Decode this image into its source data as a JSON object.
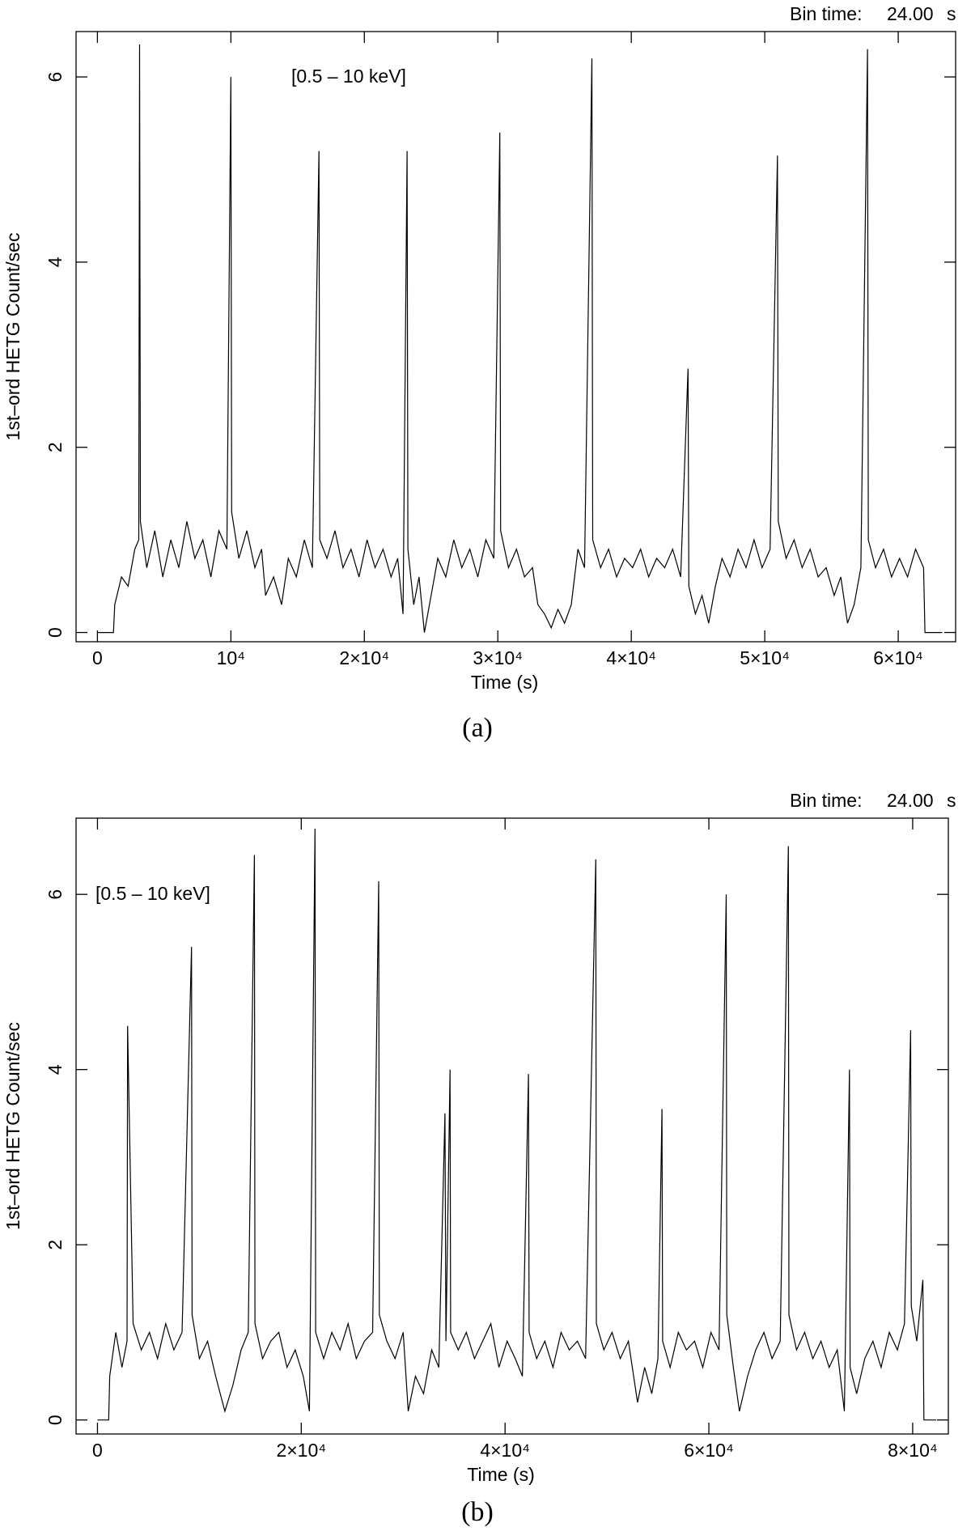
{
  "chart_data": [
    {
      "type": "line",
      "caption": "(a)",
      "annotation": "[0.5 – 10 keV]",
      "bin_time_label": "Bin time:",
      "bin_time_value": "24.00",
      "bin_time_unit": "s",
      "xlabel": "Time (s)",
      "ylabel": "1st–ord HETG Count/sec",
      "xlim": [
        -1600,
        64300
      ],
      "ylim": [
        -0.1,
        6.49
      ],
      "xticks": [
        0,
        {
          "value": 10000,
          "label": "10⁴"
        },
        {
          "value": 20000,
          "label": "2×10⁴"
        },
        {
          "value": 30000,
          "label": "3×10⁴"
        },
        {
          "value": 40000,
          "label": "4×10⁴"
        },
        {
          "value": 50000,
          "label": "5×10⁴"
        },
        {
          "value": 60000,
          "label": "6×10⁴"
        }
      ],
      "yticks": [
        0,
        2,
        4,
        6
      ],
      "color": "#000000",
      "x": [
        0,
        1200,
        1300,
        1800,
        2300,
        2800,
        3100,
        3160,
        3220,
        3700,
        4300,
        4900,
        5500,
        6100,
        6700,
        7300,
        7900,
        8500,
        9100,
        9700,
        10000,
        10060,
        10600,
        11200,
        11800,
        12300,
        12600,
        13200,
        13800,
        14300,
        14900,
        15500,
        16100,
        16600,
        16660,
        17200,
        17800,
        18400,
        19000,
        19600,
        20200,
        20800,
        21400,
        22000,
        22500,
        22900,
        23200,
        23260,
        23700,
        24100,
        24500,
        25000,
        25500,
        26100,
        26700,
        27300,
        27900,
        28500,
        29100,
        29700,
        30150,
        30210,
        30800,
        31400,
        32000,
        32600,
        33000,
        33500,
        34000,
        34500,
        35000,
        35500,
        36000,
        36500,
        37050,
        37110,
        37700,
        38300,
        38900,
        39500,
        40100,
        40700,
        41300,
        41900,
        42500,
        43100,
        43700,
        44250,
        44310,
        44800,
        45300,
        45800,
        46300,
        46800,
        47400,
        48000,
        48600,
        49200,
        49800,
        50400,
        50950,
        51010,
        51600,
        52200,
        52800,
        53400,
        54000,
        54600,
        55200,
        55700,
        56200,
        56700,
        57200,
        57700,
        57760,
        58300,
        58900,
        59500,
        60100,
        60700,
        61300,
        61900,
        62000,
        63300
      ],
      "values": [
        0,
        0,
        0.3,
        0.6,
        0.5,
        0.9,
        1.0,
        6.35,
        1.2,
        0.7,
        1.1,
        0.6,
        1.0,
        0.7,
        1.2,
        0.8,
        1.0,
        0.6,
        1.1,
        0.9,
        6.0,
        1.3,
        0.8,
        1.1,
        0.7,
        0.9,
        0.4,
        0.6,
        0.3,
        0.8,
        0.6,
        1.0,
        0.7,
        5.2,
        1.0,
        0.8,
        1.1,
        0.7,
        0.9,
        0.6,
        1.0,
        0.7,
        0.9,
        0.6,
        0.8,
        0.2,
        5.2,
        0.9,
        0.3,
        0.6,
        0.0,
        0.4,
        0.8,
        0.6,
        1.0,
        0.7,
        0.9,
        0.6,
        1.0,
        0.8,
        5.4,
        1.1,
        0.7,
        0.9,
        0.6,
        0.7,
        0.3,
        0.2,
        0.05,
        0.25,
        0.1,
        0.3,
        0.9,
        0.7,
        6.2,
        1.0,
        0.7,
        0.9,
        0.6,
        0.8,
        0.7,
        0.9,
        0.6,
        0.8,
        0.7,
        0.9,
        0.6,
        2.85,
        0.5,
        0.2,
        0.4,
        0.1,
        0.5,
        0.8,
        0.6,
        0.9,
        0.7,
        1.0,
        0.7,
        0.9,
        5.15,
        1.2,
        0.8,
        1.0,
        0.7,
        0.9,
        0.6,
        0.7,
        0.4,
        0.6,
        0.1,
        0.3,
        0.7,
        6.3,
        1.0,
        0.7,
        0.9,
        0.6,
        0.8,
        0.6,
        0.9,
        0.7,
        0,
        0
      ]
    },
    {
      "type": "line",
      "caption": "(b)",
      "annotation": "[0.5 – 10 keV]",
      "bin_time_label": "Bin time:",
      "bin_time_value": "24.00",
      "bin_time_unit": "s",
      "xlabel": "Time (s)",
      "ylabel": "1st–ord HETG Count/sec",
      "xlim": [
        -2100,
        83500
      ],
      "ylim": [
        -0.16,
        6.87
      ],
      "xticks": [
        0,
        {
          "value": 20000,
          "label": "2×10⁴"
        },
        {
          "value": 40000,
          "label": "4×10⁴"
        },
        {
          "value": 60000,
          "label": "6×10⁴"
        },
        {
          "value": 80000,
          "label": "8×10⁴"
        }
      ],
      "yticks": [
        0,
        2,
        4,
        6
      ],
      "color": "#000000",
      "x": [
        0,
        1100,
        1200,
        1800,
        2400,
        2900,
        2960,
        3500,
        4300,
        5100,
        5900,
        6700,
        7500,
        8300,
        9230,
        9290,
        10000,
        10800,
        11600,
        12500,
        13300,
        14100,
        14800,
        15400,
        15460,
        16200,
        17000,
        17800,
        18600,
        19400,
        20200,
        20800,
        21350,
        21410,
        22200,
        23000,
        23800,
        24600,
        25400,
        26200,
        27000,
        27600,
        27660,
        28400,
        29200,
        30000,
        30500,
        31200,
        32000,
        32800,
        33500,
        34100,
        34200,
        34600,
        34660,
        35400,
        36200,
        37000,
        37800,
        38600,
        39400,
        40200,
        41000,
        41700,
        42300,
        42360,
        43100,
        43900,
        44700,
        45500,
        46300,
        47100,
        47900,
        48900,
        48960,
        49700,
        50500,
        51300,
        52100,
        53000,
        53700,
        54400,
        55000,
        55400,
        55460,
        56200,
        57000,
        57800,
        58600,
        59400,
        60200,
        61000,
        61700,
        61760,
        62400,
        63000,
        63800,
        64600,
        65400,
        66200,
        67000,
        67800,
        67860,
        68600,
        69400,
        70200,
        71000,
        71800,
        72600,
        73300,
        73800,
        73860,
        74500,
        75300,
        76100,
        76900,
        77700,
        78500,
        79200,
        79800,
        79860,
        80400,
        81000,
        81100,
        82300
      ],
      "values": [
        0,
        0,
        0.5,
        1.0,
        0.6,
        0.9,
        4.5,
        1.1,
        0.8,
        1.0,
        0.7,
        1.1,
        0.8,
        1.0,
        5.4,
        1.2,
        0.7,
        0.9,
        0.5,
        0.1,
        0.4,
        0.8,
        1.0,
        6.45,
        1.1,
        0.7,
        0.9,
        1.0,
        0.6,
        0.8,
        0.5,
        0.1,
        6.75,
        1.0,
        0.7,
        1.0,
        0.8,
        1.1,
        0.7,
        0.9,
        1.0,
        6.15,
        1.2,
        0.9,
        0.7,
        1.0,
        0.1,
        0.5,
        0.3,
        0.8,
        0.6,
        3.5,
        0.9,
        4.0,
        1.0,
        0.8,
        1.0,
        0.7,
        0.9,
        1.1,
        0.6,
        0.9,
        0.7,
        0.5,
        3.95,
        1.0,
        0.7,
        0.9,
        0.6,
        1.0,
        0.8,
        0.9,
        0.7,
        6.4,
        1.1,
        0.8,
        1.0,
        0.7,
        0.9,
        0.2,
        0.6,
        0.3,
        0.7,
        3.55,
        0.9,
        0.6,
        1.0,
        0.8,
        0.9,
        0.6,
        1.0,
        0.8,
        6.0,
        1.2,
        0.6,
        0.1,
        0.5,
        0.8,
        1.0,
        0.7,
        0.9,
        6.55,
        1.2,
        0.8,
        1.0,
        0.7,
        0.9,
        0.6,
        0.8,
        0.1,
        4.0,
        0.6,
        0.3,
        0.7,
        0.9,
        0.6,
        1.0,
        0.8,
        1.1,
        4.45,
        1.3,
        0.9,
        1.6,
        0,
        0
      ]
    }
  ]
}
